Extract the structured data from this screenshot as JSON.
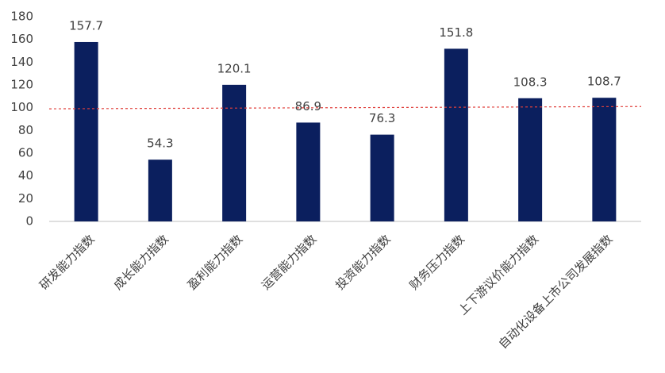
{
  "chart_data": {
    "type": "bar",
    "categories": [
      "研发能力指数",
      "成长能力指数",
      "盈利能力指数",
      "运营能力指数",
      "投资能力指数",
      "财务压力指数",
      "上下游议价能力指数",
      "自动化设备上市公司发展指数"
    ],
    "values": [
      157.7,
      54.3,
      120.1,
      86.9,
      76.3,
      151.8,
      108.3,
      108.7
    ],
    "color": "#0b1f5e",
    "ylim": [
      0,
      180
    ],
    "yticks": [
      0,
      20,
      40,
      60,
      80,
      100,
      120,
      140,
      160,
      180
    ],
    "grid": false,
    "reference_line": {
      "values": [
        99,
        101
      ],
      "color": "#e0403c"
    }
  }
}
